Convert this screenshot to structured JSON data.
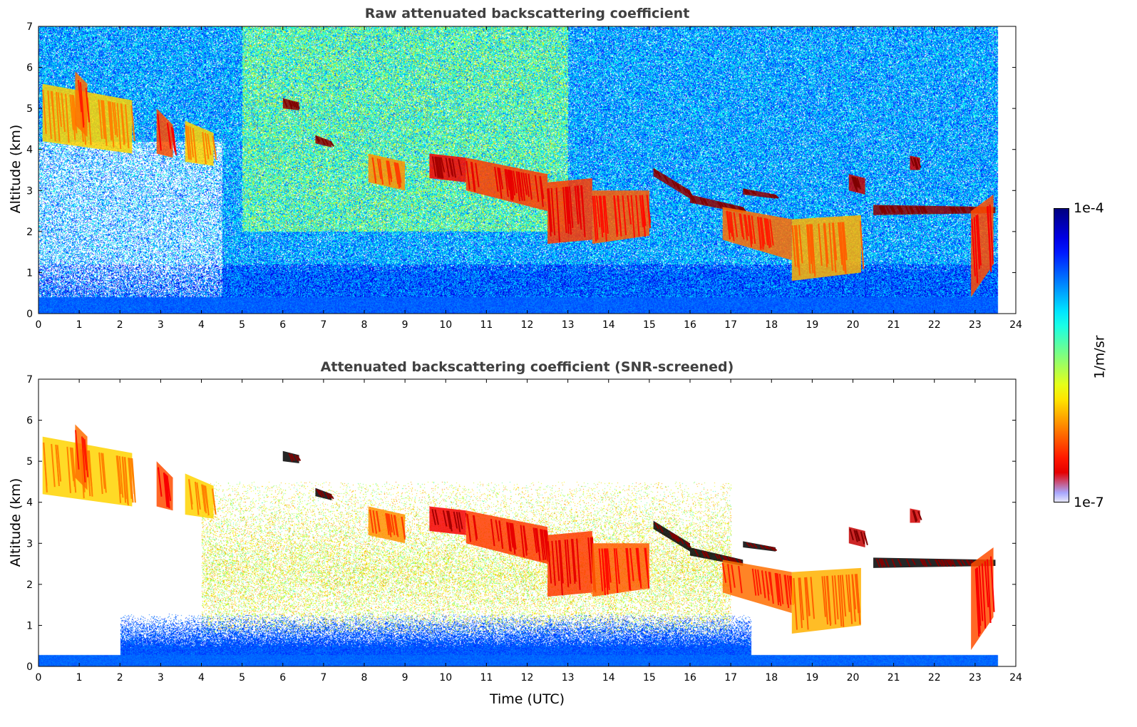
{
  "chart_data": [
    {
      "type": "heatmap",
      "title": "Raw attenuated backscattering coefficient",
      "xlabel": "",
      "ylabel": "Altitude (km)",
      "xlim": [
        0,
        24
      ],
      "ylim": [
        0,
        7
      ],
      "xticks": [
        0,
        1,
        2,
        3,
        4,
        5,
        6,
        7,
        8,
        9,
        10,
        11,
        12,
        13,
        14,
        15,
        16,
        17,
        18,
        19,
        20,
        21,
        22,
        23,
        24
      ],
      "yticks": [
        0,
        1,
        2,
        3,
        4,
        5,
        6,
        7
      ],
      "data_end_time": 23.55,
      "screened": false
    },
    {
      "type": "heatmap",
      "title": "Attenuated backscattering coefficient (SNR-screened)",
      "xlabel": "Time (UTC)",
      "ylabel": "Altitude (km)",
      "xlim": [
        0,
        24
      ],
      "ylim": [
        0,
        7
      ],
      "xticks": [
        0,
        1,
        2,
        3,
        4,
        5,
        6,
        7,
        8,
        9,
        10,
        11,
        12,
        13,
        14,
        15,
        16,
        17,
        18,
        19,
        20,
        21,
        22,
        23,
        24
      ],
      "yticks": [
        0,
        1,
        2,
        3,
        4,
        5,
        6,
        7
      ],
      "data_end_time": 23.55,
      "screened": true
    }
  ],
  "colorbar": {
    "label": "1/m/sr",
    "min_label": "1e-7",
    "max_label": "1e-4",
    "scale": "log",
    "vmin": -7,
    "vmax": -4,
    "colormap": "jet"
  },
  "features": [
    {
      "t": [
        0.1,
        2.3
      ],
      "top": [
        5.6,
        5.2
      ],
      "bot": [
        4.2,
        3.9
      ],
      "log_beta": -5.0
    },
    {
      "t": [
        0.9,
        1.2
      ],
      "top": [
        5.9,
        5.6
      ],
      "bot": [
        4.6,
        4.3
      ],
      "log_beta": -4.7
    },
    {
      "t": [
        2.9,
        3.3
      ],
      "top": [
        5.0,
        4.6
      ],
      "bot": [
        3.9,
        3.8
      ],
      "log_beta": -4.6
    },
    {
      "t": [
        3.6,
        4.3
      ],
      "top": [
        4.7,
        4.4
      ],
      "bot": [
        3.7,
        3.6
      ],
      "log_beta": -5.0
    },
    {
      "t": [
        6.0,
        6.4
      ],
      "top": [
        5.25,
        5.15
      ],
      "bot": [
        5.0,
        4.95
      ],
      "log_beta": -4.05
    },
    {
      "t": [
        6.8,
        7.2
      ],
      "top": [
        4.35,
        4.2
      ],
      "bot": [
        4.15,
        4.05
      ],
      "log_beta": -4.05
    },
    {
      "t": [
        8.1,
        9.0
      ],
      "top": [
        3.9,
        3.7
      ],
      "bot": [
        3.2,
        3.0
      ],
      "log_beta": -4.8
    },
    {
      "t": [
        9.6,
        10.5
      ],
      "top": [
        3.9,
        3.8
      ],
      "bot": [
        3.3,
        3.2
      ],
      "log_beta": -4.35
    },
    {
      "t": [
        10.5,
        12.5
      ],
      "top": [
        3.8,
        3.4
      ],
      "bot": [
        3.0,
        2.5
      ],
      "log_beta": -4.55
    },
    {
      "t": [
        12.5,
        13.6
      ],
      "top": [
        3.2,
        3.3
      ],
      "bot": [
        1.7,
        1.8
      ],
      "log_beta": -4.55
    },
    {
      "t": [
        13.6,
        15.0
      ],
      "top": [
        3.0,
        3.0
      ],
      "bot": [
        1.7,
        1.9
      ],
      "log_beta": -4.65
    },
    {
      "t": [
        15.1,
        16.0
      ],
      "top": [
        3.55,
        3.0
      ],
      "bot": [
        3.35,
        2.8
      ],
      "log_beta": -4.05
    },
    {
      "t": [
        16.0,
        17.3
      ],
      "top": [
        2.9,
        2.6
      ],
      "bot": [
        2.7,
        2.45
      ],
      "log_beta": -4.05
    },
    {
      "t": [
        17.3,
        18.1
      ],
      "top": [
        3.05,
        2.9
      ],
      "bot": [
        2.9,
        2.8
      ],
      "log_beta": -4.05
    },
    {
      "t": [
        16.8,
        18.5
      ],
      "top": [
        2.6,
        2.3
      ],
      "bot": [
        1.8,
        1.3
      ],
      "log_beta": -4.7
    },
    {
      "t": [
        18.5,
        20.2
      ],
      "top": [
        2.3,
        2.4
      ],
      "bot": [
        0.8,
        1.0
      ],
      "log_beta": -4.9
    },
    {
      "t": [
        19.9,
        20.3
      ],
      "top": [
        3.4,
        3.3
      ],
      "bot": [
        3.0,
        2.9
      ],
      "log_beta": -4.2
    },
    {
      "t": [
        20.5,
        23.5
      ],
      "top": [
        2.65,
        2.6
      ],
      "bot": [
        2.4,
        2.45
      ],
      "log_beta": -4.05
    },
    {
      "t": [
        21.4,
        21.65
      ],
      "top": [
        3.85,
        3.8
      ],
      "bot": [
        3.5,
        3.5
      ],
      "log_beta": -4.25
    },
    {
      "t": [
        22.9,
        23.45
      ],
      "top": [
        2.5,
        2.9
      ],
      "bot": [
        0.4,
        1.2
      ],
      "log_beta": -4.6
    }
  ]
}
